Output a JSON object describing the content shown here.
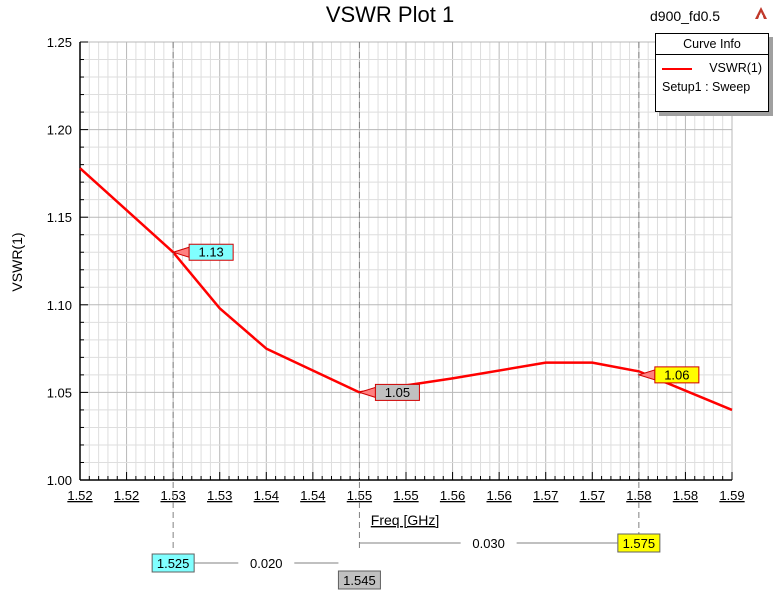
{
  "header": {
    "title": "VSWR Plot 1",
    "design_name": "d900_fd0.5",
    "logo_icon": "ansys-logo-icon"
  },
  "legend": {
    "header": "Curve Info",
    "series_name": "VSWR(1)",
    "setup": "Setup1 : Sweep"
  },
  "colors": {
    "curve": "#ff0000",
    "marker_cyan": "#80ffff",
    "marker_gray": "#c0c0c0",
    "marker_yellow": "#ffff00"
  },
  "chart_data": {
    "type": "line",
    "title": "VSWR Plot 1",
    "xlabel": "Freq [GHz]",
    "ylabel": "VSWR(1)",
    "xlim": [
      1.515,
      1.585
    ],
    "ylim": [
      1.0,
      1.25
    ],
    "grid": true,
    "legend_position": "top-right",
    "x_ticks": [
      1.515,
      1.52,
      1.525,
      1.53,
      1.535,
      1.54,
      1.545,
      1.55,
      1.555,
      1.56,
      1.565,
      1.57,
      1.575,
      1.58,
      1.585
    ],
    "x_tick_labels": [
      "1.52",
      "1.52",
      "1.53",
      "1.53",
      "1.54",
      "1.54",
      "1.55",
      "1.55",
      "1.56",
      "1.56",
      "1.57",
      "1.57",
      "1.58",
      "1.58",
      "1.59"
    ],
    "y_ticks": [
      1.0,
      1.05,
      1.1,
      1.15,
      1.2,
      1.25
    ],
    "y_tick_labels": [
      "1.00",
      "1.05",
      "1.10",
      "1.15",
      "1.20",
      "1.25"
    ],
    "series": [
      {
        "name": "VSWR(1)",
        "x": [
          1.515,
          1.525,
          1.53,
          1.535,
          1.545,
          1.555,
          1.565,
          1.57,
          1.575,
          1.585
        ],
        "y": [
          1.178,
          1.13,
          1.098,
          1.075,
          1.05,
          1.058,
          1.067,
          1.067,
          1.062,
          1.04
        ]
      }
    ],
    "markers": [
      {
        "x": 1.525,
        "y": 1.13,
        "value_label": "1.13",
        "x_label": "1.525",
        "color": "#80ffff"
      },
      {
        "x": 1.545,
        "y": 1.05,
        "value_label": "1.05",
        "x_label": "1.545",
        "color": "#c0c0c0"
      },
      {
        "x": 1.575,
        "y": 1.06,
        "value_label": "1.06",
        "x_label": "1.575",
        "color": "#ffff00"
      }
    ],
    "deltas": [
      {
        "from": 1.525,
        "to": 1.545,
        "label": "0.020"
      },
      {
        "from": 1.545,
        "to": 1.575,
        "label": "0.030"
      }
    ]
  }
}
